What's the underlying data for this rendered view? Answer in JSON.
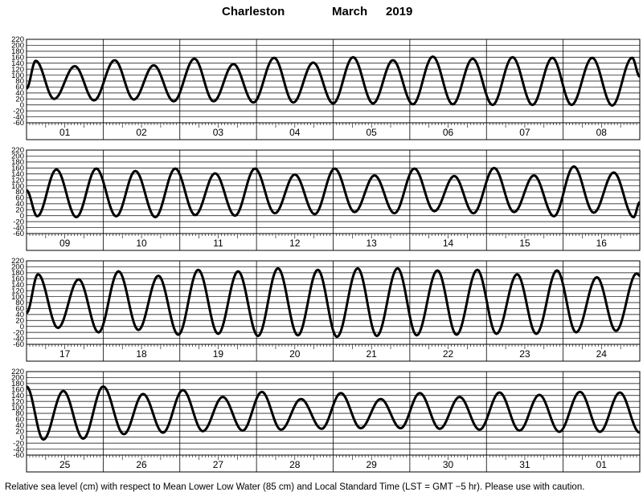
{
  "header": {
    "station": "Charleston",
    "month": "March",
    "year": "2019"
  },
  "footnote": "Relative sea level (cm) with respect to Mean Lower Low Water (85 cm) and Local Standard Time (LST = GMT −5 hr). Please use with caution.",
  "colors": {
    "line": "#000000",
    "grid": "#000000",
    "background": "#ffffff"
  },
  "chart_data": {
    "type": "line",
    "title": "Charleston March 2019",
    "xlabel": "",
    "ylabel": "",
    "grid": true,
    "legend": "none",
    "ylim": [
      -60,
      220
    ],
    "yticks": [
      -60,
      -40,
      -20,
      0,
      20,
      40,
      60,
      80,
      100,
      120,
      140,
      160,
      180,
      200,
      220
    ],
    "panels": [
      {
        "days": [
          "01",
          "02",
          "03",
          "04",
          "05",
          "06",
          "07",
          "08"
        ],
        "extrema": [
          [
            0,
            55
          ],
          [
            0.12,
            148
          ],
          [
            0.36,
            20
          ],
          [
            0.63,
            130
          ],
          [
            0.88,
            15
          ],
          [
            1.15,
            150
          ],
          [
            1.4,
            18
          ],
          [
            1.66,
            133
          ],
          [
            1.92,
            12
          ],
          [
            2.19,
            155
          ],
          [
            2.44,
            12
          ],
          [
            2.7,
            137
          ],
          [
            2.96,
            8
          ],
          [
            3.23,
            158
          ],
          [
            3.48,
            8
          ],
          [
            3.74,
            142
          ],
          [
            4,
            5
          ],
          [
            4.26,
            160
          ],
          [
            4.52,
            5
          ],
          [
            4.78,
            150
          ],
          [
            5.04,
            2
          ],
          [
            5.3,
            162
          ],
          [
            5.56,
            2
          ],
          [
            5.82,
            155
          ],
          [
            6.08,
            0
          ],
          [
            6.34,
            160
          ],
          [
            6.6,
            0
          ],
          [
            6.86,
            158
          ],
          [
            7.11,
            0
          ],
          [
            7.38,
            158
          ],
          [
            7.64,
            -2
          ],
          [
            7.9,
            158
          ],
          [
            8,
            95
          ]
        ]
      },
      {
        "days": [
          "09",
          "10",
          "11",
          "12",
          "13",
          "14",
          "15",
          "16"
        ],
        "extrema": [
          [
            0,
            85
          ],
          [
            0.14,
            -2
          ],
          [
            0.39,
            155
          ],
          [
            0.65,
            -5
          ],
          [
            0.91,
            158
          ],
          [
            1.17,
            -2
          ],
          [
            1.42,
            150
          ],
          [
            1.68,
            -5
          ],
          [
            1.94,
            158
          ],
          [
            2.2,
            2
          ],
          [
            2.46,
            142
          ],
          [
            2.72,
            0
          ],
          [
            2.98,
            158
          ],
          [
            3.24,
            8
          ],
          [
            3.5,
            138
          ],
          [
            3.76,
            5
          ],
          [
            4.02,
            158
          ],
          [
            4.28,
            12
          ],
          [
            4.54,
            135
          ],
          [
            4.8,
            8
          ],
          [
            5.06,
            158
          ],
          [
            5.32,
            15
          ],
          [
            5.58,
            133
          ],
          [
            5.83,
            8
          ],
          [
            6.1,
            160
          ],
          [
            6.36,
            12
          ],
          [
            6.62,
            135
          ],
          [
            6.88,
            -2
          ],
          [
            7.14,
            165
          ],
          [
            7.4,
            10
          ],
          [
            7.66,
            145
          ],
          [
            7.92,
            -5
          ],
          [
            8,
            45
          ]
        ]
      },
      {
        "days": [
          "17",
          "18",
          "19",
          "20",
          "21",
          "22",
          "23",
          "24"
        ],
        "extrema": [
          [
            0,
            45
          ],
          [
            0.15,
            175
          ],
          [
            0.41,
            -5
          ],
          [
            0.68,
            158
          ],
          [
            0.94,
            -20
          ],
          [
            1.2,
            185
          ],
          [
            1.46,
            -12
          ],
          [
            1.72,
            170
          ],
          [
            1.98,
            -28
          ],
          [
            2.24,
            190
          ],
          [
            2.5,
            -25
          ],
          [
            2.76,
            185
          ],
          [
            3.02,
            -32
          ],
          [
            3.28,
            195
          ],
          [
            3.54,
            -30
          ],
          [
            3.8,
            190
          ],
          [
            4.05,
            -35
          ],
          [
            4.32,
            195
          ],
          [
            4.57,
            -32
          ],
          [
            4.84,
            195
          ],
          [
            5.09,
            -30
          ],
          [
            5.36,
            188
          ],
          [
            5.61,
            -28
          ],
          [
            5.88,
            190
          ],
          [
            6.13,
            -25
          ],
          [
            6.4,
            175
          ],
          [
            6.65,
            -25
          ],
          [
            6.92,
            188
          ],
          [
            7.17,
            -20
          ],
          [
            7.44,
            165
          ],
          [
            7.69,
            -15
          ],
          [
            7.96,
            178
          ],
          [
            8,
            170
          ]
        ]
      },
      {
        "days": [
          "25",
          "26",
          "27",
          "28",
          "29",
          "30",
          "31",
          "01"
        ],
        "extrema": [
          [
            0,
            170
          ],
          [
            0.22,
            -8
          ],
          [
            0.48,
            155
          ],
          [
            0.74,
            -5
          ],
          [
            1,
            170
          ],
          [
            1.27,
            10
          ],
          [
            1.52,
            145
          ],
          [
            1.78,
            15
          ],
          [
            2.04,
            158
          ],
          [
            2.3,
            20
          ],
          [
            2.56,
            135
          ],
          [
            2.82,
            22
          ],
          [
            3.07,
            152
          ],
          [
            3.32,
            25
          ],
          [
            3.58,
            128
          ],
          [
            3.85,
            28
          ],
          [
            4.1,
            148
          ],
          [
            4.36,
            30
          ],
          [
            4.62,
            128
          ],
          [
            4.88,
            30
          ],
          [
            5.13,
            148
          ],
          [
            5.39,
            28
          ],
          [
            5.65,
            135
          ],
          [
            5.91,
            25
          ],
          [
            6.17,
            150
          ],
          [
            6.43,
            22
          ],
          [
            6.69,
            142
          ],
          [
            6.95,
            18
          ],
          [
            7.22,
            152
          ],
          [
            7.48,
            18
          ],
          [
            7.74,
            150
          ],
          [
            8,
            15
          ]
        ]
      }
    ]
  }
}
